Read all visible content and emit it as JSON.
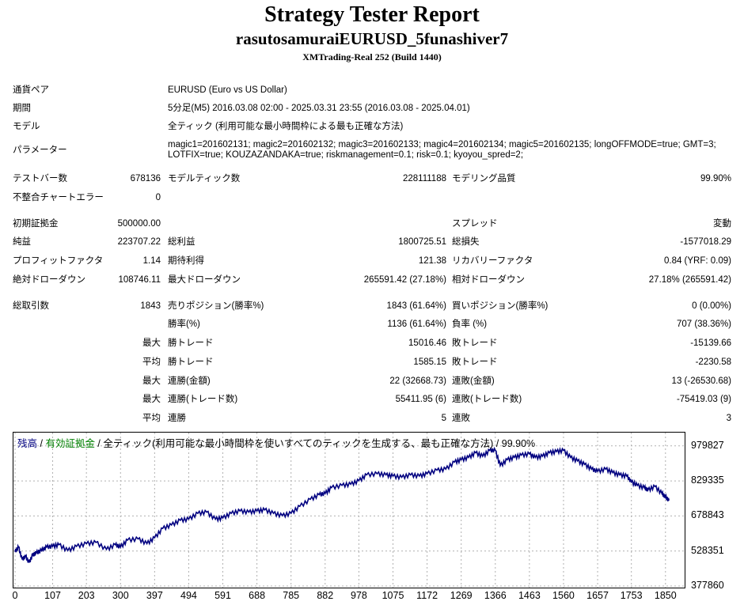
{
  "report": {
    "title": "Strategy Tester Report",
    "subtitle": "rasutosamuraiEURUSD_5funashiver7",
    "build": "XMTrading-Real 252 (Build 1440)"
  },
  "info": {
    "symbol_label": "通貨ペア",
    "symbol_value": "EURUSD (Euro vs US Dollar)",
    "period_label": "期間",
    "period_value": "5分足(M5) 2016.03.08 02:00 - 2025.03.31 23:55 (2016.03.08 - 2025.04.01)",
    "model_label": "モデル",
    "model_value": "全ティック (利用可能な最小時間枠による最も正確な方法)",
    "params_label": "パラメーター",
    "params_value": "magic1=201602131; magic2=201602132; magic3=201602133; magic4=201602134; magic5=201602135; longOFFMODE=true; GMT=3; LOTFIX=true; KOUZAZANDAKA=true; riskmanagement=0.1; risk=0.1; kyoyou_spred=2;"
  },
  "stats": {
    "bars_label": "テストバー数",
    "bars_value": "678136",
    "ticks_label": "モデルティック数",
    "ticks_value": "228111188",
    "quality_label": "モデリング品質",
    "quality_value": "99.90%",
    "mismatch_label": "不整合チャートエラー",
    "mismatch_value": "0",
    "deposit_label": "初期証拠金",
    "deposit_value": "500000.00",
    "spread_label": "スプレッド",
    "spread_value": "変動",
    "net_label": "純益",
    "net_value": "223707.22",
    "gross_profit_label": "総利益",
    "gross_profit_value": "1800725.51",
    "gross_loss_label": "総損失",
    "gross_loss_value": "-1577018.29",
    "pf_label": "プロフィットファクタ",
    "pf_value": "1.14",
    "expected_label": "期待利得",
    "expected_value": "121.38",
    "recovery_label": "リカバリーファクタ",
    "recovery_value": "0.84 (YRF: 0.09)",
    "abs_dd_label": "絶対ドローダウン",
    "abs_dd_value": "108746.11",
    "max_dd_label": "最大ドローダウン",
    "max_dd_value": "265591.42 (27.18%)",
    "rel_dd_label": "相対ドローダウン",
    "rel_dd_value": "27.18% (265591.42)",
    "total_trades_label": "総取引数",
    "total_trades_value": "1843",
    "short_label": "売りポジション(勝率%)",
    "short_value": "1843 (61.64%)",
    "long_label": "買いポジション(勝率%)",
    "long_value": "0 (0.00%)",
    "winrate_label": "勝率(%)",
    "winrate_value": "1136 (61.64%)",
    "lossrate_label": "負率 (%)",
    "lossrate_value": "707 (38.36%)",
    "max_label": "最大",
    "avg_label": "平均",
    "largest_win_label": "勝トレード",
    "largest_win_value": "15016.46",
    "largest_loss_label": "敗トレード",
    "largest_loss_value": "-15139.66",
    "avg_win_label": "勝トレード",
    "avg_win_value": "1585.15",
    "avg_loss_label": "敗トレード",
    "avg_loss_value": "-2230.58",
    "cons_wins_amt_label": "連勝(金額)",
    "cons_wins_amt_value": "22 (32668.73)",
    "cons_losses_amt_label": "連敗(金額)",
    "cons_losses_amt_value": "13 (-26530.68)",
    "cons_profit_label": "連勝(トレード数)",
    "cons_profit_value": "55411.95 (6)",
    "cons_loss_label": "連敗(トレード数)",
    "cons_loss_value": "-75419.03 (9)",
    "avg_cons_wins_label": "連勝",
    "avg_cons_wins_value": "5",
    "avg_cons_losses_label": "連敗",
    "avg_cons_losses_value": "3"
  },
  "legend": {
    "balance": "残高",
    "sep1": " / ",
    "equity": "有効証拠金",
    "sep2": " / ",
    "model": "全ティック(利用可能な最小時間枠を使いすべてのティックを生成する、最も正確な方法) / 99.90%"
  },
  "colors": {
    "balance": "#000080",
    "equity": "#008000",
    "grid": "#b0b0b0"
  },
  "chart_data": {
    "type": "line",
    "title": "",
    "xlabel": "",
    "ylabel": "",
    "xlim": [
      0,
      1900
    ],
    "ylim": [
      377860,
      1030000
    ],
    "x_ticks": [
      "0",
      "107",
      "203",
      "300",
      "397",
      "494",
      "591",
      "688",
      "785",
      "882",
      "978",
      "1075",
      "1172",
      "1269",
      "1366",
      "1463",
      "1560",
      "1657",
      "1753",
      "1850"
    ],
    "y_ticks": [
      "979827",
      "829335",
      "678843",
      "528351",
      "377860"
    ],
    "grid": true,
    "series": [
      {
        "name": "残高",
        "x": [
          0,
          10,
          20,
          30,
          40,
          50,
          60,
          75,
          90,
          107,
          125,
          150,
          175,
          203,
          230,
          260,
          285,
          300,
          320,
          350,
          375,
          397,
          420,
          445,
          470,
          494,
          520,
          545,
          570,
          591,
          615,
          640,
          665,
          688,
          710,
          735,
          760,
          785,
          810,
          840,
          865,
          882,
          900,
          930,
          955,
          978,
          1000,
          1030,
          1055,
          1075,
          1100,
          1125,
          1150,
          1172,
          1200,
          1225,
          1250,
          1269,
          1290,
          1310,
          1330,
          1350,
          1366,
          1380,
          1400,
          1420,
          1440,
          1463,
          1480,
          1500,
          1520,
          1540,
          1560,
          1580,
          1600,
          1620,
          1640,
          1657,
          1680,
          1700,
          1720,
          1740,
          1753,
          1770,
          1790,
          1800,
          1820,
          1840,
          1850,
          1860
        ],
        "y": [
          525000,
          545000,
          492000,
          505000,
          478000,
          510000,
          520000,
          530000,
          545000,
          548000,
          555000,
          530000,
          548000,
          560000,
          565000,
          535000,
          555000,
          545000,
          575000,
          580000,
          560000,
          585000,
          625000,
          640000,
          660000,
          665000,
          690000,
          695000,
          665000,
          670000,
          690000,
          700000,
          695000,
          700000,
          705000,
          690000,
          680000,
          690000,
          720000,
          750000,
          770000,
          775000,
          800000,
          810000,
          815000,
          830000,
          855000,
          860000,
          855000,
          850000,
          845000,
          855000,
          850000,
          860000,
          875000,
          880000,
          910000,
          920000,
          930000,
          950000,
          935000,
          960000,
          960000,
          895000,
          920000,
          930000,
          940000,
          945000,
          930000,
          935000,
          950000,
          955000,
          960000,
          930000,
          915000,
          900000,
          880000,
          870000,
          880000,
          865000,
          855000,
          850000,
          825000,
          810000,
          800000,
          790000,
          805000,
          775000,
          760000,
          745000
        ]
      }
    ]
  }
}
